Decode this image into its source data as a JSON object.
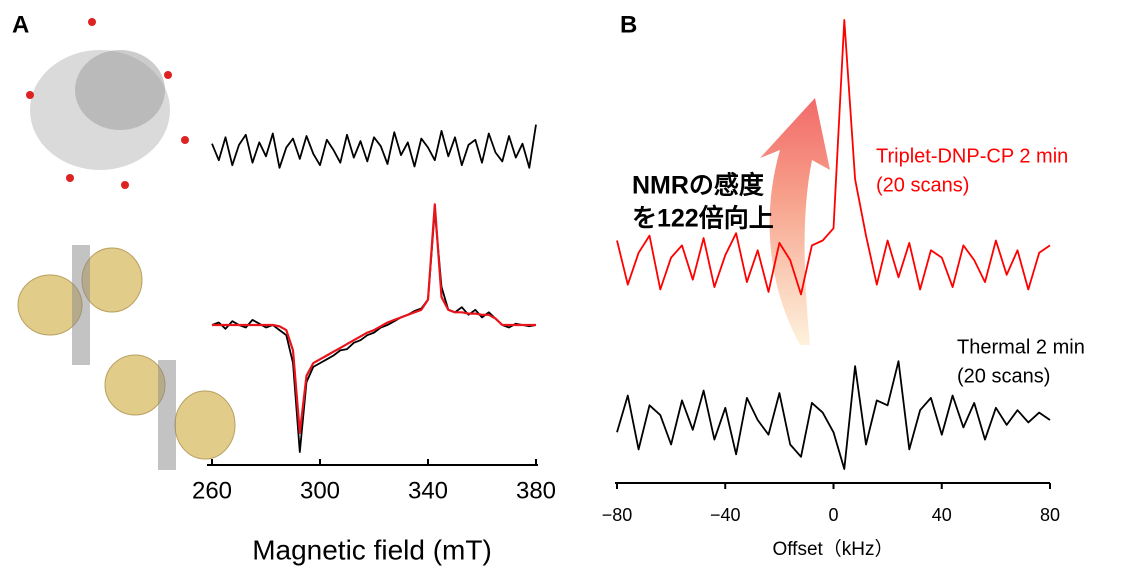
{
  "chart_data": [
    {
      "type": "line",
      "panel": "A",
      "xlabel": "Magnetic field (mT)",
      "xlim": [
        260,
        380
      ],
      "xticks": [
        260,
        300,
        340,
        380
      ],
      "x": [
        260,
        262.5,
        265,
        267.5,
        270,
        272.5,
        275,
        277.5,
        280,
        282.5,
        285,
        287.5,
        290,
        292.5,
        295,
        297.5,
        300,
        302.5,
        305,
        307.5,
        310,
        312.5,
        315,
        317.5,
        320,
        322.5,
        325,
        327.5,
        330,
        332.5,
        335,
        337.5,
        340,
        342.5,
        345,
        347.5,
        350,
        352.5,
        355,
        357.5,
        360,
        362.5,
        365,
        367.5,
        370,
        372.5,
        375,
        377.5,
        380
      ],
      "series": [
        {
          "color": "#000000",
          "values": [
            0.05,
            -0.08,
            0.1,
            -0.12,
            0.04,
            0.12,
            -0.1,
            0.06,
            -0.05,
            0.13,
            -0.14,
            0.02,
            0.09,
            -0.07,
            0.11,
            -0.03,
            -0.12,
            0.08,
            0.0,
            -0.1,
            0.12,
            -0.06,
            0.07,
            -0.09,
            0.1,
            0.03,
            -0.11,
            0.14,
            -0.04,
            0.06,
            -0.13,
            0.09,
            0.02,
            -0.08,
            0.15,
            -0.05,
            0.1,
            -0.12,
            0.04,
            0.08,
            -0.1,
            0.13,
            -0.02,
            -0.09,
            0.11,
            -0.06,
            0.05,
            -0.14,
            0.2
          ]
        },
        {
          "color": "#000000",
          "values": [
            0.0,
            0.02,
            -0.03,
            0.03,
            0.0,
            -0.02,
            0.04,
            0.01,
            -0.02,
            0.0,
            -0.04,
            -0.08,
            -0.3,
            -1.0,
            -0.45,
            -0.33,
            -0.3,
            -0.27,
            -0.24,
            -0.2,
            -0.19,
            -0.14,
            -0.12,
            -0.08,
            -0.06,
            -0.02,
            0.0,
            0.03,
            0.06,
            0.08,
            0.11,
            0.13,
            0.2,
            0.9,
            0.3,
            0.12,
            0.1,
            0.14,
            0.08,
            0.12,
            0.06,
            0.1,
            0.05,
            0.0,
            -0.02,
            0.01,
            0.0,
            -0.01,
            0.0
          ]
        },
        {
          "color": "#e8141b",
          "values": [
            0.0,
            0.0,
            0.0,
            0.0,
            0.0,
            0.0,
            0.0,
            0.0,
            0.0,
            0.0,
            -0.01,
            -0.04,
            -0.2,
            -0.85,
            -0.4,
            -0.3,
            -0.27,
            -0.24,
            -0.21,
            -0.18,
            -0.15,
            -0.12,
            -0.09,
            -0.06,
            -0.04,
            -0.01,
            0.02,
            0.04,
            0.06,
            0.08,
            0.1,
            0.12,
            0.2,
            0.95,
            0.22,
            0.12,
            0.1,
            0.1,
            0.09,
            0.09,
            0.08,
            0.08,
            0.05,
            0.0,
            0.0,
            0.0,
            0.0,
            0.0,
            0.0
          ]
        }
      ]
    },
    {
      "type": "line",
      "panel": "B",
      "xlabel": "Offset（kHz）",
      "xlim": [
        -80,
        80
      ],
      "xticks": [
        {
          "value": -80,
          "label": "−80"
        },
        {
          "value": -40,
          "label": "−40"
        },
        0,
        40,
        80
      ],
      "x": [
        -80,
        -76,
        -72,
        -68,
        -64,
        -60,
        -56,
        -52,
        -48,
        -44,
        -40,
        -36,
        -32,
        -28,
        -24,
        -20,
        -16,
        -12,
        -8,
        -4,
        0,
        4,
        8,
        12,
        16,
        20,
        24,
        28,
        32,
        36,
        40,
        44,
        48,
        52,
        56,
        60,
        64,
        68,
        72,
        76,
        80
      ],
      "series": [
        {
          "color": "#ff0000",
          "values": [
            0.1,
            -0.08,
            0.05,
            0.12,
            -0.1,
            0.03,
            0.08,
            -0.06,
            0.11,
            -0.09,
            0.04,
            0.13,
            -0.07,
            0.06,
            -0.11,
            0.09,
            0.02,
            -0.12,
            0.08,
            0.1,
            0.15,
            1.0,
            0.35,
            0.12,
            -0.08,
            0.1,
            -0.05,
            0.09,
            -0.1,
            0.06,
            0.03,
            -0.09,
            0.08,
            0.02,
            -0.07,
            0.1,
            -0.04,
            0.06,
            -0.1,
            0.05,
            0.08
          ]
        },
        {
          "color": "#000000",
          "values": [
            -0.05,
            0.1,
            -0.12,
            0.06,
            0.02,
            -0.1,
            0.08,
            -0.04,
            0.12,
            -0.08,
            0.05,
            -0.14,
            0.09,
            0.0,
            -0.06,
            0.11,
            -0.1,
            -0.15,
            0.07,
            0.03,
            -0.05,
            -0.2,
            0.22,
            -0.1,
            0.08,
            0.06,
            0.24,
            -0.12,
            0.04,
            0.09,
            -0.06,
            0.1,
            -0.03,
            0.07,
            -0.08,
            0.05,
            -0.02,
            0.04,
            -0.01,
            0.03,
            0.0
          ]
        }
      ],
      "annotations": [
        {
          "text": "NMRの感度",
          "color": "#000000"
        },
        {
          "text": "を122倍向上",
          "color": "#000000"
        },
        {
          "text": "Triplet-DNP-CP 2 min",
          "color": "#ff0000"
        },
        {
          "text": "(20 scans)",
          "color": "#ff0000"
        },
        {
          "text": "Thermal 2 min",
          "color": "#000000"
        },
        {
          "text": "(20 scans)",
          "color": "#000000"
        }
      ]
    }
  ]
}
